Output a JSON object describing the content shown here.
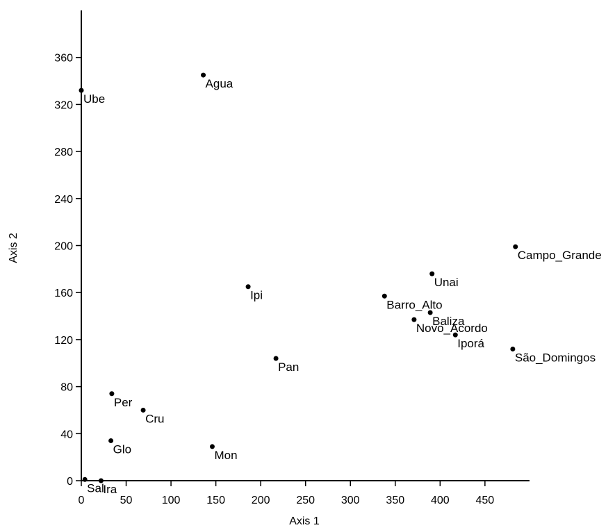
{
  "chart_data": {
    "type": "scatter",
    "title": "",
    "xlabel": "Axis 1",
    "ylabel": "Axis 2",
    "xlim": [
      0,
      500
    ],
    "ylim": [
      0,
      400
    ],
    "x_ticks": [
      0,
      50,
      100,
      150,
      200,
      250,
      300,
      350,
      400,
      450
    ],
    "y_ticks": [
      0,
      40,
      80,
      120,
      160,
      200,
      240,
      280,
      320,
      360
    ],
    "grid": false,
    "legend": "none",
    "marker_color": "#000000",
    "points": [
      {
        "label": "Ube",
        "x": 0,
        "y": 332
      },
      {
        "label": "Agua",
        "x": 136,
        "y": 345
      },
      {
        "label": "Ipi",
        "x": 186,
        "y": 165
      },
      {
        "label": "Pan",
        "x": 217,
        "y": 104
      },
      {
        "label": "Per",
        "x": 34,
        "y": 74
      },
      {
        "label": "Cru",
        "x": 69,
        "y": 60
      },
      {
        "label": "Glo",
        "x": 33,
        "y": 34
      },
      {
        "label": "Mon",
        "x": 146,
        "y": 29
      },
      {
        "label": "Sal",
        "x": 4,
        "y": 1
      },
      {
        "label": "Ira",
        "x": 22,
        "y": 0
      },
      {
        "label": "Campo_Grande",
        "x": 484,
        "y": 199
      },
      {
        "label": "Unai",
        "x": 391,
        "y": 176
      },
      {
        "label": "Barro_Alto",
        "x": 338,
        "y": 157
      },
      {
        "label": "Baliza",
        "x": 389,
        "y": 143
      },
      {
        "label": "Novo_Acordo",
        "x": 371,
        "y": 137
      },
      {
        "label": "Iporá",
        "x": 417,
        "y": 124
      },
      {
        "label": "São_Domingos",
        "x": 481,
        "y": 112
      }
    ]
  }
}
